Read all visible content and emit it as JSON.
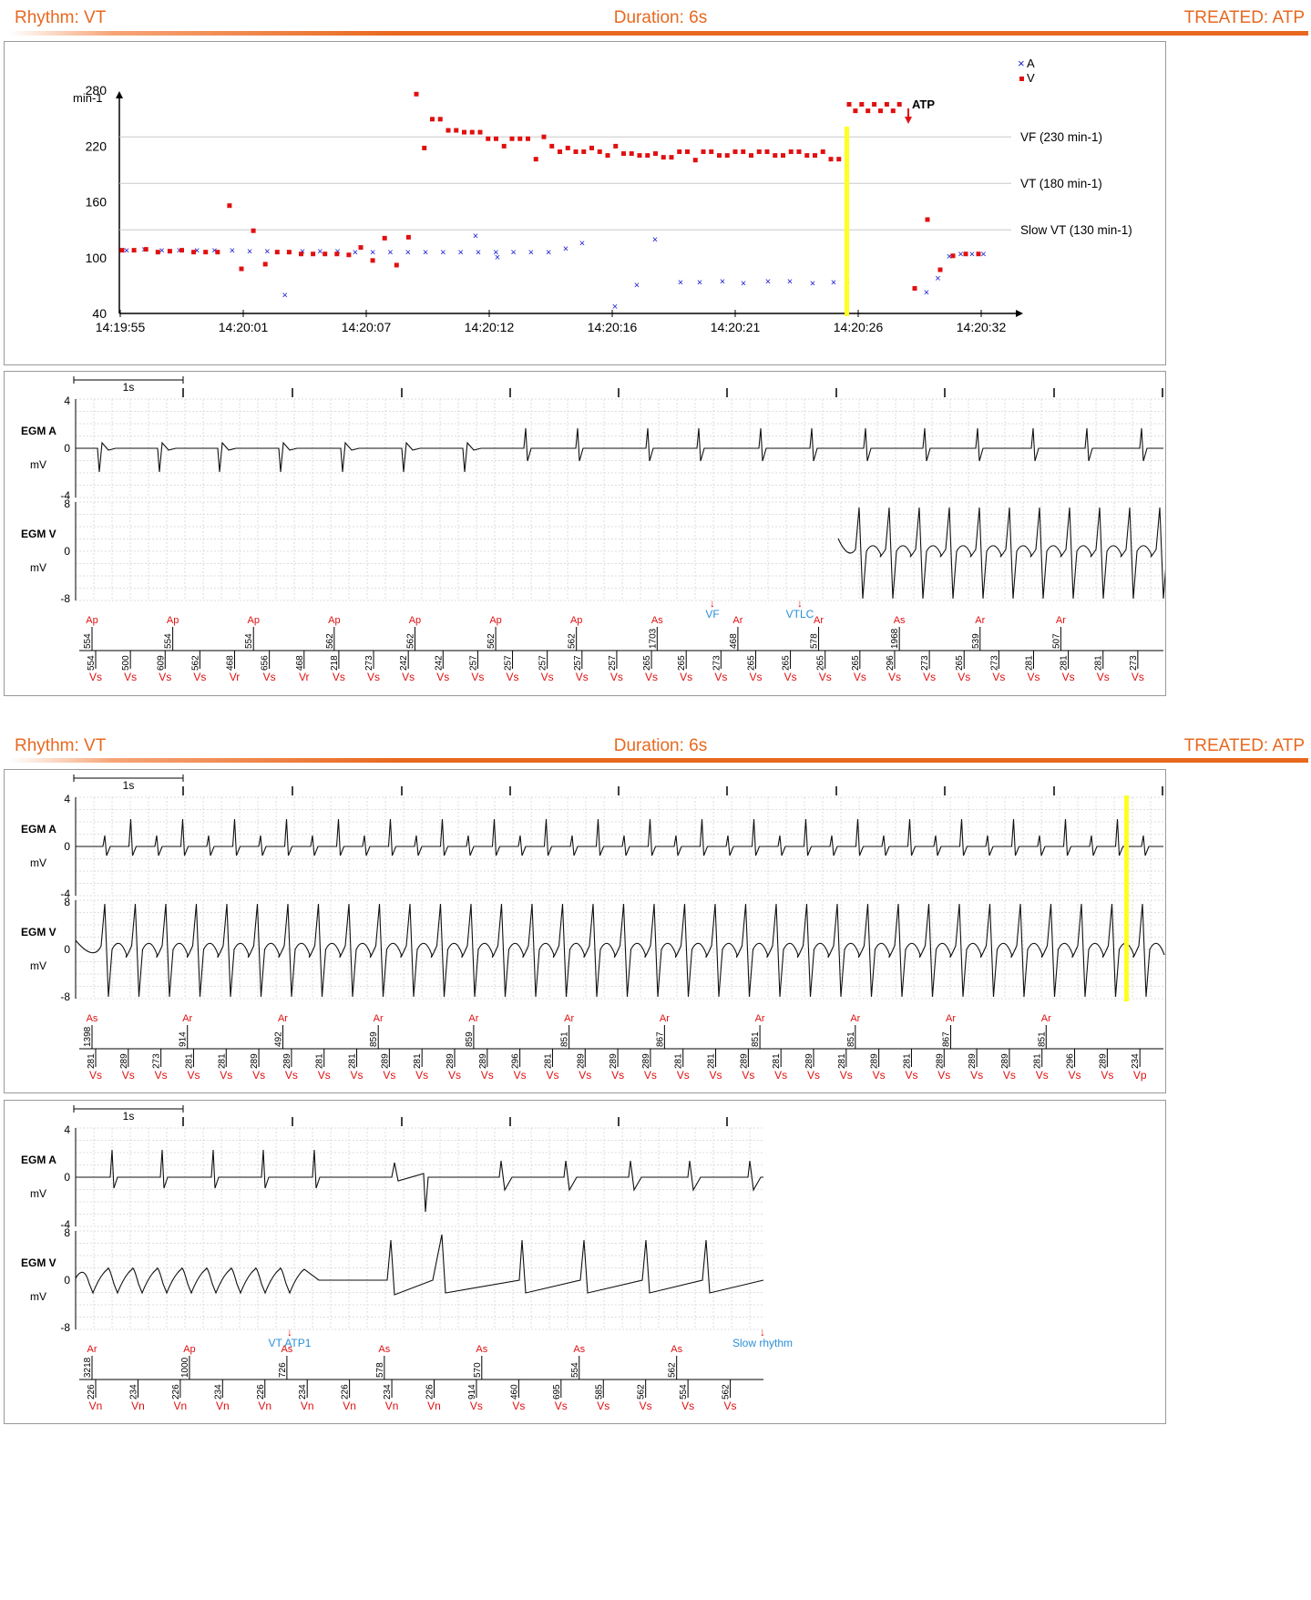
{
  "headers": [
    {
      "rhythm": "Rhythm: VT",
      "duration": "Duration: 6s",
      "treated": "TREATED: ATP"
    },
    {
      "rhythm": "Rhythm: VT",
      "duration": "Duration: 6s",
      "treated": "TREATED: ATP"
    }
  ],
  "colors": {
    "orange": "#e8681f",
    "red": "#e01010",
    "blue": "#1a1ad0",
    "cyan": "#2a8fd8",
    "yellow": "#ffff22"
  },
  "chart_data": {
    "type": "scatter",
    "ylabel": "min-1",
    "yticks": [
      40,
      100,
      160,
      220,
      280
    ],
    "ylim": [
      40,
      290
    ],
    "xticks": [
      "14:19:55",
      "14:20:01",
      "14:20:07",
      "14:20:12",
      "14:20:16",
      "14:20:21",
      "14:20:26",
      "14:20:32"
    ],
    "legend": [
      {
        "symbol": "×",
        "name": "A"
      },
      {
        "symbol": "■",
        "name": "V"
      }
    ],
    "zones": [
      {
        "label": "VF (230 min-1)",
        "value": 230
      },
      {
        "label": "VT (180 min-1)",
        "value": 180
      },
      {
        "label": "Slow VT (130 min-1)",
        "value": 130
      }
    ],
    "annotation": "ATP",
    "series": [
      {
        "name": "A",
        "values": [
          108,
          109,
          108,
          108,
          108,
          108,
          108,
          107,
          107,
          60,
          107,
          107,
          107,
          106,
          106,
          106,
          106,
          106,
          106,
          106,
          106,
          106,
          106,
          106,
          106,
          124,
          101,
          110,
          116,
          48,
          71,
          120,
          74,
          74,
          75,
          73,
          75,
          75,
          73,
          74,
          75,
          63,
          78,
          102,
          104,
          104,
          104
        ]
      },
      {
        "name": "V",
        "values": [
          108,
          108,
          109,
          106,
          107,
          108,
          106,
          106,
          106,
          156,
          88,
          129,
          93,
          106,
          106,
          104,
          104,
          104,
          104,
          103,
          111,
          97,
          121,
          92,
          122,
          276,
          218,
          249,
          249,
          237,
          237,
          235,
          235,
          235,
          228,
          228,
          220,
          228,
          228,
          228,
          206,
          230,
          220,
          214,
          218,
          214,
          214,
          218,
          214,
          210,
          220,
          212,
          212,
          210,
          210,
          212,
          208,
          208,
          214,
          214,
          205,
          214,
          214,
          210,
          210,
          214,
          214,
          210,
          214,
          214,
          210,
          210,
          214,
          214,
          210,
          210,
          214,
          206,
          206,
          265,
          258,
          265,
          258,
          265,
          258,
          265,
          258,
          265,
          67,
          141,
          87,
          102,
          104,
          104
        ]
      }
    ]
  },
  "egm": {
    "scale_label": "1s",
    "y_unit": "mV",
    "chan_a": "EGM A",
    "chan_v": "EGM V",
    "a_ticks": [
      "4",
      "0",
      "-4"
    ],
    "v_ticks": [
      "8",
      "0",
      "-8"
    ],
    "strips": [
      {
        "markers": [
          {
            "text": "VF",
            "pos": "mid"
          },
          {
            "text": "VTLC",
            "pos": "mid"
          }
        ],
        "top": [
          [
            "Ap",
            "554"
          ],
          [
            "Ap",
            "554"
          ],
          [
            "Ap",
            "554"
          ],
          [
            "Ap",
            "562"
          ],
          [
            "Ap",
            "562"
          ],
          [
            "Ap",
            "562"
          ],
          [
            "Ap",
            "562"
          ],
          [
            "As",
            "1703"
          ],
          [
            "Ar",
            "468"
          ],
          [
            "Ar",
            "578"
          ],
          [
            "As",
            "1968"
          ],
          [
            "Ar",
            "539"
          ],
          [
            "Ar",
            "507"
          ]
        ],
        "bottom": [
          [
            "Vs",
            "554"
          ],
          [
            "Vs",
            "500"
          ],
          [
            "Vs",
            "609"
          ],
          [
            "Vs",
            "562"
          ],
          [
            "Vr",
            "468"
          ],
          [
            "Vs",
            "656"
          ],
          [
            "Vr",
            "468"
          ],
          [
            "Vs",
            "218"
          ],
          [
            "Vs",
            "273"
          ],
          [
            "Vs",
            "242"
          ],
          [
            "Vs",
            "242"
          ],
          [
            "Vs",
            "257"
          ],
          [
            "Vs",
            "257"
          ],
          [
            "Vs",
            "257"
          ],
          [
            "Vs",
            "257"
          ],
          [
            "Vs",
            "257"
          ],
          [
            "Vs",
            "265"
          ],
          [
            "Vs",
            "265"
          ],
          [
            "Vs",
            "273"
          ],
          [
            "Vs",
            "265"
          ],
          [
            "Vs",
            "265"
          ],
          [
            "Vs",
            "265"
          ],
          [
            "Vs",
            "265"
          ],
          [
            "Vs",
            "296"
          ],
          [
            "Vs",
            "273"
          ],
          [
            "Vs",
            "265"
          ],
          [
            "Vs",
            "273"
          ],
          [
            "Vs",
            "281"
          ],
          [
            "Vs",
            "281"
          ],
          [
            "Vs",
            "281"
          ],
          [
            "Vs",
            "273"
          ]
        ]
      },
      {
        "markers": [],
        "top": [
          [
            "As",
            "1398"
          ],
          [
            "Ar",
            "914"
          ],
          [
            "Ar",
            "492"
          ],
          [
            "Ar",
            "859"
          ],
          [
            "Ar",
            "859"
          ],
          [
            "Ar",
            "851"
          ],
          [
            "Ar",
            "867"
          ],
          [
            "Ar",
            "851"
          ],
          [
            "Ar",
            "851"
          ],
          [
            "Ar",
            "867"
          ],
          [
            "Ar",
            "851"
          ]
        ],
        "bottom": [
          [
            "Vs",
            "281"
          ],
          [
            "Vs",
            "289"
          ],
          [
            "Vs",
            "273"
          ],
          [
            "Vs",
            "281"
          ],
          [
            "Vs",
            "281"
          ],
          [
            "Vs",
            "289"
          ],
          [
            "Vs",
            "289"
          ],
          [
            "Vs",
            "281"
          ],
          [
            "Vs",
            "281"
          ],
          [
            "Vs",
            "289"
          ],
          [
            "Vs",
            "281"
          ],
          [
            "Vs",
            "289"
          ],
          [
            "Vs",
            "289"
          ],
          [
            "Vs",
            "296"
          ],
          [
            "Vs",
            "281"
          ],
          [
            "Vs",
            "289"
          ],
          [
            "Vs",
            "289"
          ],
          [
            "Vs",
            "289"
          ],
          [
            "Vs",
            "281"
          ],
          [
            "Vs",
            "281"
          ],
          [
            "Vs",
            "289"
          ],
          [
            "Vs",
            "281"
          ],
          [
            "Vs",
            "289"
          ],
          [
            "Vs",
            "281"
          ],
          [
            "Vs",
            "289"
          ],
          [
            "Vs",
            "281"
          ],
          [
            "Vs",
            "289"
          ],
          [
            "Vs",
            "289"
          ],
          [
            "Vs",
            "289"
          ],
          [
            "Vs",
            "281"
          ],
          [
            "Vs",
            "296"
          ],
          [
            "Vs",
            "289"
          ],
          [
            "Vp",
            "234"
          ]
        ]
      },
      {
        "markers": [
          {
            "text": "VT ATP1",
            "pos": "mid"
          },
          {
            "text": "Slow rhythm",
            "pos": "mid"
          }
        ],
        "top": [
          [
            "Ar",
            "3218"
          ],
          [
            "Ap",
            "1000"
          ],
          [
            "As",
            "726"
          ],
          [
            "As",
            "578"
          ],
          [
            "As",
            "570"
          ],
          [
            "As",
            "554"
          ],
          [
            "As",
            "562"
          ]
        ],
        "bottom": [
          [
            "Vn",
            "226"
          ],
          [
            "Vn",
            "234"
          ],
          [
            "Vn",
            "226"
          ],
          [
            "Vn",
            "234"
          ],
          [
            "Vn",
            "226"
          ],
          [
            "Vn",
            "234"
          ],
          [
            "Vn",
            "226"
          ],
          [
            "Vn",
            "234"
          ],
          [
            "Vn",
            "226"
          ],
          [
            "Vs",
            "914"
          ],
          [
            "Vs",
            "460"
          ],
          [
            "Vs",
            "695"
          ],
          [
            "Vs",
            "585"
          ],
          [
            "Vs",
            "562"
          ],
          [
            "Vs",
            "554"
          ],
          [
            "Vs",
            "562"
          ]
        ]
      }
    ]
  }
}
